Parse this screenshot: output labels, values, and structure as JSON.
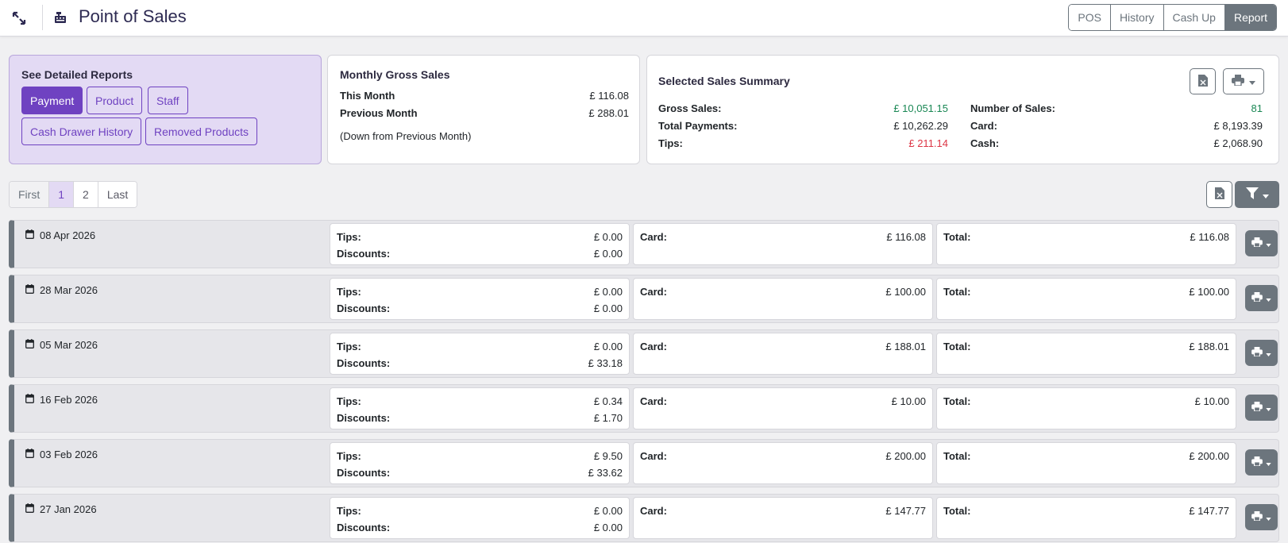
{
  "header": {
    "title": "Point of Sales",
    "nav": [
      {
        "label": "POS"
      },
      {
        "label": "History"
      },
      {
        "label": "Cash Up"
      },
      {
        "label": "Report"
      }
    ]
  },
  "detailed_reports": {
    "title": "See Detailed Reports",
    "buttons": [
      {
        "label": "Payment"
      },
      {
        "label": "Product"
      },
      {
        "label": "Staff"
      },
      {
        "label": "Cash Drawer History"
      },
      {
        "label": "Removed Products"
      }
    ]
  },
  "monthly": {
    "title": "Monthly Gross Sales",
    "this_month_label": "This Month",
    "this_month_value": "£ 116.08",
    "prev_month_label": "Previous Month",
    "prev_month_value": "£ 288.01",
    "note": "(Down from Previous Month)"
  },
  "summary": {
    "title": "Selected Sales Summary",
    "gross_sales_label": "Gross Sales:",
    "gross_sales_value": "£ 10,051.15",
    "total_payments_label": "Total Payments:",
    "total_payments_value": "£ 10,262.29",
    "tips_label": "Tips:",
    "tips_value": "£ 211.14",
    "num_sales_label": "Number of Sales:",
    "num_sales_value": "81",
    "card_label": "Card:",
    "card_value": "£ 8,193.39",
    "cash_label": "Cash:",
    "cash_value": "£ 2,068.90"
  },
  "pagination": [
    "First",
    "1",
    "2",
    "Last"
  ],
  "labels": {
    "tips": "Tips:",
    "discounts": "Discounts:",
    "card": "Card:",
    "total": "Total:"
  },
  "rows": [
    {
      "date": "08 Apr 2026",
      "tips": "£ 0.00",
      "discounts": "£ 0.00",
      "card": "£ 116.08",
      "total": "£ 116.08"
    },
    {
      "date": "28 Mar 2026",
      "tips": "£ 0.00",
      "discounts": "£ 0.00",
      "card": "£ 100.00",
      "total": "£ 100.00"
    },
    {
      "date": "05 Mar 2026",
      "tips": "£ 0.00",
      "discounts": "£ 33.18",
      "card": "£ 188.01",
      "total": "£ 188.01"
    },
    {
      "date": "16 Feb 2026",
      "tips": "£ 0.34",
      "discounts": "£ 1.70",
      "card": "£ 10.00",
      "total": "£ 10.00"
    },
    {
      "date": "03 Feb 2026",
      "tips": "£ 9.50",
      "discounts": "£ 33.62",
      "card": "£ 200.00",
      "total": "£ 200.00"
    },
    {
      "date": "27 Jan 2026",
      "tips": "£ 0.00",
      "discounts": "£ 0.00",
      "card": "£ 147.77",
      "total": "£ 147.77"
    }
  ],
  "colors": {
    "accent": "#6f42c1",
    "positive": "#198754",
    "negative": "#dc3545",
    "secondary": "#6c757d"
  },
  "icons": {
    "expand": "expand-arrows-icon",
    "register": "cash-register-icon",
    "excel": "excel-file-icon",
    "print": "printer-icon",
    "filter": "filter-icon",
    "calendar": "calendar-icon"
  }
}
